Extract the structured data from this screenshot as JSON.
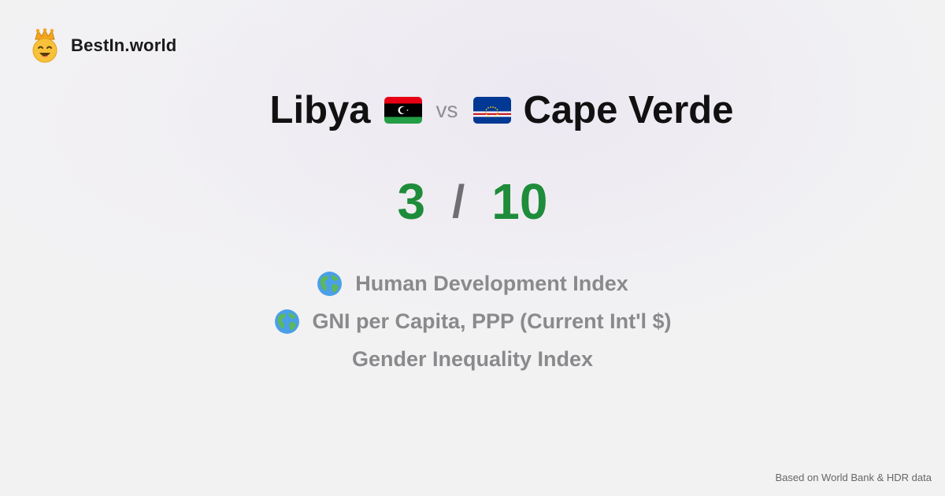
{
  "brand": {
    "name": "BestIn.world",
    "logo_icon": "crowned-smiley-icon"
  },
  "comparison": {
    "country_a": "Libya",
    "country_a_flag": "libya-flag-icon",
    "vs_label": "vs",
    "country_b": "Cape Verde",
    "country_b_flag": "cape-verde-flag-icon"
  },
  "score": {
    "a": "3",
    "separator": "/",
    "b": "10",
    "color": "#1e8c3a"
  },
  "metrics": [
    {
      "label": "Human Development Index",
      "icon": "globe-icon"
    },
    {
      "label": "GNI per Capita, PPP (Current Int'l $)",
      "icon": "globe-icon"
    },
    {
      "label": "Gender Inequality Index",
      "icon": ""
    }
  ],
  "footer": {
    "source": "Based on World Bank & HDR data"
  }
}
